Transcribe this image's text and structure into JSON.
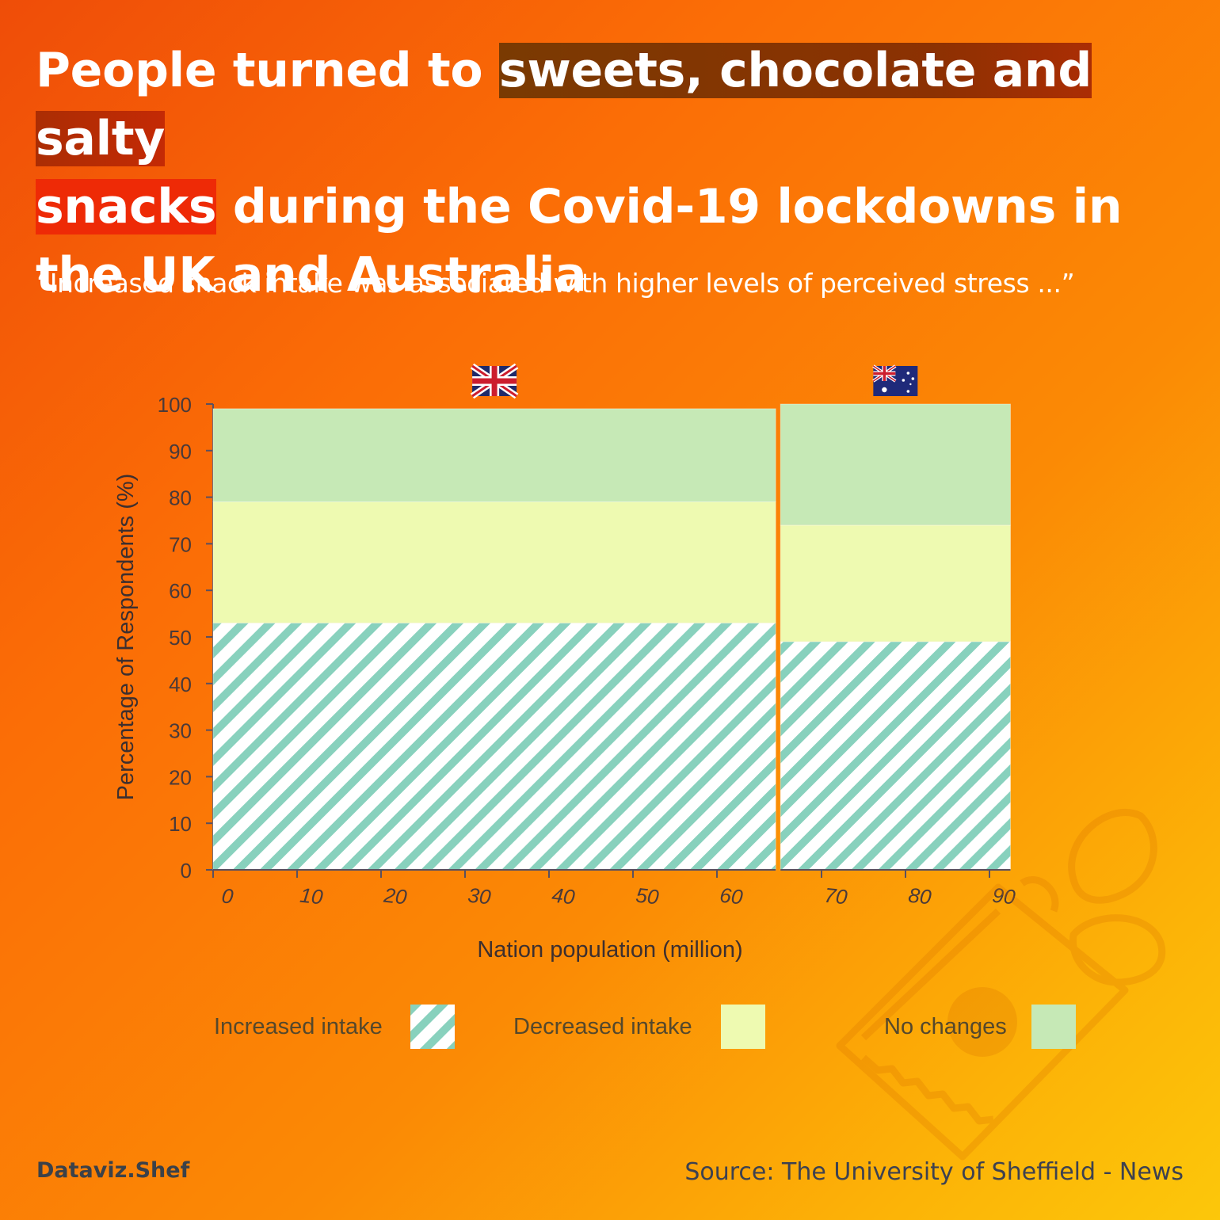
{
  "title": {
    "prefix": "People turned to ",
    "highlight_1": "sweets, chocolate and salty",
    "highlight_2": "snacks",
    "suffix": " during the Covid-19 lockdowns in the UK and Australia"
  },
  "subtitle": "“Increased snack intake was associated with higher levels of perceived stress ...”",
  "chart_data": {
    "type": "mosaic",
    "xlabel": "Nation population (million)",
    "ylabel": "Percentage of Respondents (%)",
    "xlim": [
      0,
      92
    ],
    "ylim": [
      0,
      100
    ],
    "x_ticks": [
      0,
      10,
      20,
      30,
      40,
      50,
      60,
      70,
      80,
      90
    ],
    "y_ticks": [
      0,
      10,
      20,
      30,
      40,
      50,
      60,
      70,
      80,
      90,
      100
    ],
    "grid": false,
    "legend_placement": "bottom",
    "bars": [
      {
        "flag": "uk-flag-icon",
        "population": 67,
        "segments": [
          {
            "category": "Increased intake",
            "value": 53
          },
          {
            "category": "Decreased intake",
            "value": 26
          },
          {
            "category": "No changes",
            "value": 20
          }
        ]
      },
      {
        "flag": "australia-flag-icon",
        "population": 25.5,
        "segments": [
          {
            "category": "Increased intake",
            "value": 49
          },
          {
            "category": "Decreased intake",
            "value": 25
          },
          {
            "category": "No changes",
            "value": 26
          }
        ]
      }
    ]
  },
  "legend": [
    {
      "label": "Increased intake",
      "color": "#88d1bd",
      "pattern": "diagonal-stripes"
    },
    {
      "label": "Decreased intake",
      "color": "#eefab1",
      "pattern": "solid"
    },
    {
      "label": "No changes",
      "color": "#c6e9b6",
      "pattern": "solid"
    }
  ],
  "colors": {
    "stripe": "#88d1bd",
    "stripe_bg": "#ffffff",
    "decreased": "#eefab1",
    "no_change": "#c6e9b6",
    "axis": "#5a5060"
  },
  "decoration": "snack-bag-icon",
  "footer": {
    "brand": "Dataviz.Shef",
    "source": "Source: The University of Sheffield - News"
  }
}
